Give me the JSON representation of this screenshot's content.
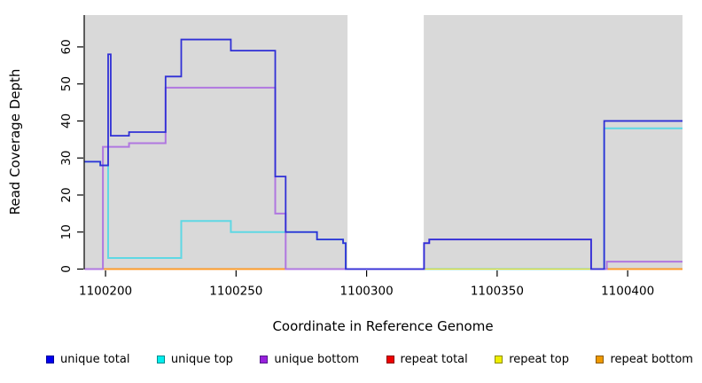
{
  "chart_data": {
    "type": "line",
    "subtype": "step-coverage",
    "title": "",
    "xlabel": "Coordinate in Reference Genome",
    "ylabel": "Read Coverage Depth",
    "xlim": [
      1100192,
      1100421
    ],
    "ylim": [
      0,
      68.6
    ],
    "x_ticks": [
      1100200,
      1100250,
      1100300,
      1100350,
      1100400
    ],
    "y_ticks": [
      0,
      10,
      20,
      30,
      40,
      50,
      60
    ],
    "grid": false,
    "plot_background": "#d9d9d9",
    "masked_region": {
      "x_start": 1100292.7,
      "x_end": 1100321.9,
      "color": "#ffffff"
    },
    "legend_position": "bottom",
    "draw_order": [
      "repeat total",
      "unique top",
      "repeat top",
      "repeat bottom",
      "unique bottom",
      "unique total"
    ],
    "series": [
      {
        "name": "unique total",
        "line_color": "#3030d6",
        "legend_fill": "#0000ee",
        "legend_border": "#000099",
        "line_width": 1.8,
        "segments": [
          {
            "steps": [
              [
                1100192,
                29
              ],
              [
                1100198,
                28
              ],
              [
                1100201,
                58
              ],
              [
                1100202,
                36
              ],
              [
                1100209,
                37
              ],
              [
                1100223,
                52
              ],
              [
                1100229,
                62
              ],
              [
                1100248,
                59
              ],
              [
                1100265,
                25
              ],
              [
                1100269,
                10
              ],
              [
                1100281,
                8
              ],
              [
                1100291,
                7
              ],
              [
                1100292,
                0
              ],
              [
                1100322,
                7
              ],
              [
                1100324,
                8
              ],
              [
                1100386,
                0
              ],
              [
                1100391,
                40
              ]
            ],
            "end": 1100421
          }
        ]
      },
      {
        "name": "unique top",
        "line_color": "#5fd8e4",
        "legend_fill": "#00eeee",
        "legend_border": "#008b8b",
        "line_width": 2.0,
        "segments": [
          {
            "steps": [
              [
                1100192,
                29
              ],
              [
                1100198,
                28
              ],
              [
                1100201,
                3
              ],
              [
                1100229,
                13
              ],
              [
                1100248,
                10
              ],
              [
                1100281,
                8
              ],
              [
                1100291,
                7
              ],
              [
                1100292,
                0
              ],
              [
                1100391,
                38
              ]
            ],
            "end": 1100421
          }
        ]
      },
      {
        "name": "unique bottom",
        "line_color": "#b077e0",
        "legend_fill": "#9920dd",
        "legend_border": "#551a8b",
        "line_width": 2.0,
        "segments": [
          {
            "steps": [
              [
                1100192,
                0
              ],
              [
                1100199,
                33
              ],
              [
                1100209,
                34
              ],
              [
                1100223,
                49
              ],
              [
                1100265,
                15
              ],
              [
                1100269,
                0
              ],
              [
                1100322,
                7
              ],
              [
                1100324,
                8
              ],
              [
                1100386,
                0
              ],
              [
                1100392,
                2
              ]
            ],
            "end": 1100421
          }
        ]
      },
      {
        "name": "repeat total",
        "line_color": "#dd2244",
        "legend_fill": "#ee0000",
        "legend_border": "#8b0000",
        "line_width": 1.4,
        "segments": [
          {
            "steps": [
              [
                1100199,
                0
              ]
            ],
            "end": 1100269
          },
          {
            "steps": [
              [
                1100391,
                0
              ]
            ],
            "end": 1100421
          }
        ]
      },
      {
        "name": "repeat top",
        "line_color": "#eedd30",
        "legend_fill": "#eeee00",
        "legend_border": "#8b8b00",
        "line_width": 1.2,
        "segments": [
          {
            "steps": [
              [
                1100199,
                0
              ]
            ],
            "end": 1100269
          },
          {
            "steps": [
              [
                1100322,
                0
              ]
            ],
            "end": 1100421
          }
        ]
      },
      {
        "name": "repeat bottom",
        "line_color": "#ff9b21",
        "legend_fill": "#ee9900",
        "legend_border": "#8b5a00",
        "line_width": 1.8,
        "segments": [
          {
            "steps": [
              [
                1100199,
                0
              ]
            ],
            "end": 1100269
          },
          {
            "steps": [
              [
                1100391,
                0
              ]
            ],
            "end": 1100421
          }
        ]
      }
    ]
  }
}
